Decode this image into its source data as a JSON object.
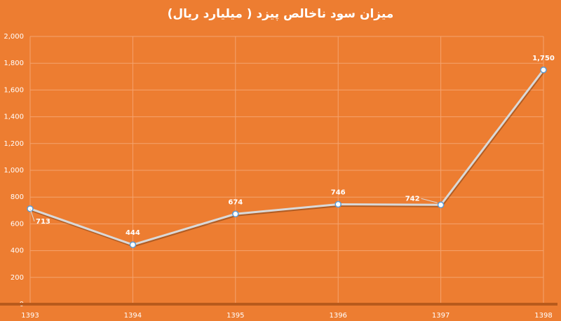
{
  "chart_data": {
    "type": "line",
    "title": "میزان سود ناخالص پیزد  ( میلیارد ریال)",
    "categories": [
      "1393",
      "1394",
      "1395",
      "1396",
      "1397",
      "1398"
    ],
    "series": [
      {
        "name": "سود ناخالص",
        "color": "#d9d9d9",
        "values": [
          713,
          444,
          674,
          746,
          742,
          1750
        ],
        "value_labels": [
          "713",
          "444",
          "674",
          "746",
          "742",
          "1,750"
        ]
      }
    ],
    "ylim": [
      0,
      2000
    ],
    "yticks": [
      0,
      200,
      400,
      600,
      800,
      {
        "value": 1000,
        "label": "1,000"
      },
      {
        "value": 1200,
        "label": "1,200"
      },
      {
        "value": 1400,
        "label": "1,400"
      },
      {
        "value": 1600,
        "label": "1,600"
      },
      {
        "value": 1800,
        "label": "1,800"
      },
      {
        "value": 2000,
        "label": "2,000"
      }
    ],
    "grid": true
  }
}
